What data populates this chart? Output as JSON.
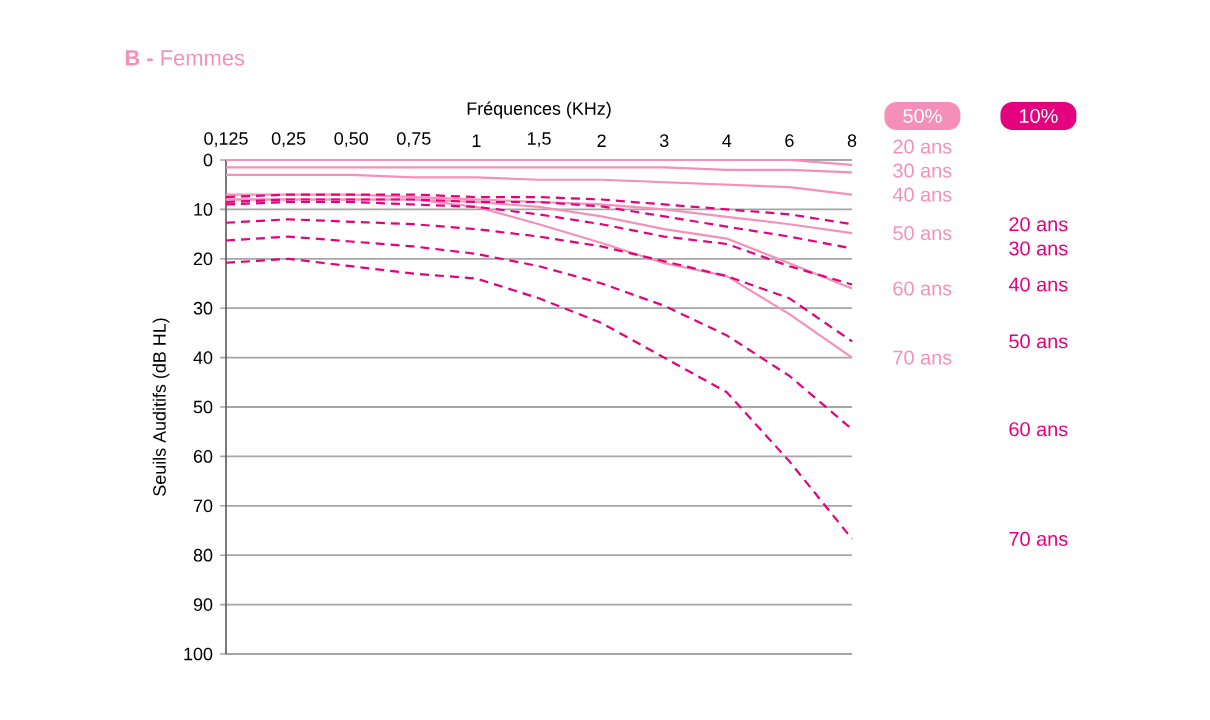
{
  "chart_data": {
    "type": "line",
    "title": "**B -** Femmes",
    "xlabel": "Fréquences (KHz)",
    "ylabel": "Seuils Auditifs (dB HL)",
    "categories": [
      "0,125",
      "0,25",
      "0,50",
      "0,75",
      "1",
      "1,5",
      "2",
      "3",
      "4",
      "6",
      "8"
    ],
    "ylim": [
      100,
      0
    ],
    "yticks": [
      0,
      10,
      20,
      30,
      40,
      50,
      60,
      70,
      80,
      90,
      100
    ],
    "grid": "y",
    "annotations": [
      "50%",
      "10%"
    ],
    "series": [
      {
        "name": "20 ans",
        "color": "#f58eb8",
        "line_style": "solid",
        "values": [
          0,
          0,
          0,
          0,
          0,
          0,
          0,
          0,
          0,
          0,
          1
        ]
      },
      {
        "name": "30 ans",
        "color": "#f48fba",
        "line_style": "solid",
        "values": [
          1.5,
          1.5,
          1.5,
          1.5,
          1.5,
          1.5,
          1.5,
          1.5,
          2,
          2,
          2.5
        ]
      },
      {
        "name": "40 ans",
        "color": "#f690b8",
        "line_style": "solid",
        "values": [
          3,
          3,
          3,
          3.5,
          3.5,
          4,
          4,
          4.5,
          5,
          5.5,
          7
        ]
      },
      {
        "name": "50 ans",
        "color": "#f591bb",
        "line_style": "solid",
        "values": [
          7,
          7,
          7,
          7.5,
          8,
          8.5,
          9,
          10,
          11.5,
          13,
          14.8
        ]
      },
      {
        "name": "60 ans",
        "color": "#f392b9",
        "line_style": "solid",
        "values": [
          8,
          8,
          8,
          8,
          8.5,
          9.5,
          11.4,
          14,
          15.9,
          20.9,
          26
        ]
      },
      {
        "name": "70 ans",
        "color": "#f590b9",
        "line_style": "solid",
        "values": [
          8,
          8,
          8,
          8,
          9.5,
          13,
          16.8,
          20.9,
          23.5,
          31.2,
          40
        ]
      },
      {
        "name": "20 ans",
        "color": "#e5007d",
        "line_style": "dashed",
        "values": [
          7.5,
          7,
          7,
          7,
          7.5,
          7.5,
          8,
          9,
          10,
          11,
          13
        ]
      },
      {
        "name": "30 ans",
        "color": "#e7017f",
        "line_style": "dashed",
        "values": [
          8.5,
          8,
          8,
          8,
          8.5,
          8.5,
          9.4,
          11.4,
          13.5,
          15.5,
          17.9
        ]
      },
      {
        "name": "40 ans",
        "color": "#e4027e",
        "line_style": "dashed",
        "values": [
          9,
          8.5,
          8.5,
          9,
          9.5,
          11,
          13,
          15.5,
          17,
          21.5,
          25.2
        ]
      },
      {
        "name": "50 ans",
        "color": "#e6017c",
        "line_style": "dashed",
        "values": [
          12.7,
          12,
          12.5,
          13,
          14,
          15.5,
          17.5,
          20.5,
          23.5,
          28,
          36.7
        ]
      },
      {
        "name": "60 ans",
        "color": "#e80080",
        "line_style": "dashed",
        "values": [
          16.3,
          15.5,
          16.5,
          17.5,
          19,
          21.5,
          25,
          29.5,
          35.5,
          43.7,
          54.5
        ]
      },
      {
        "name": "70 ans",
        "color": "#e6007e",
        "line_style": "dashed",
        "values": [
          20.8,
          20,
          21.5,
          23,
          24,
          28,
          33,
          40,
          47,
          61,
          76.7
        ]
      }
    ]
  }
}
